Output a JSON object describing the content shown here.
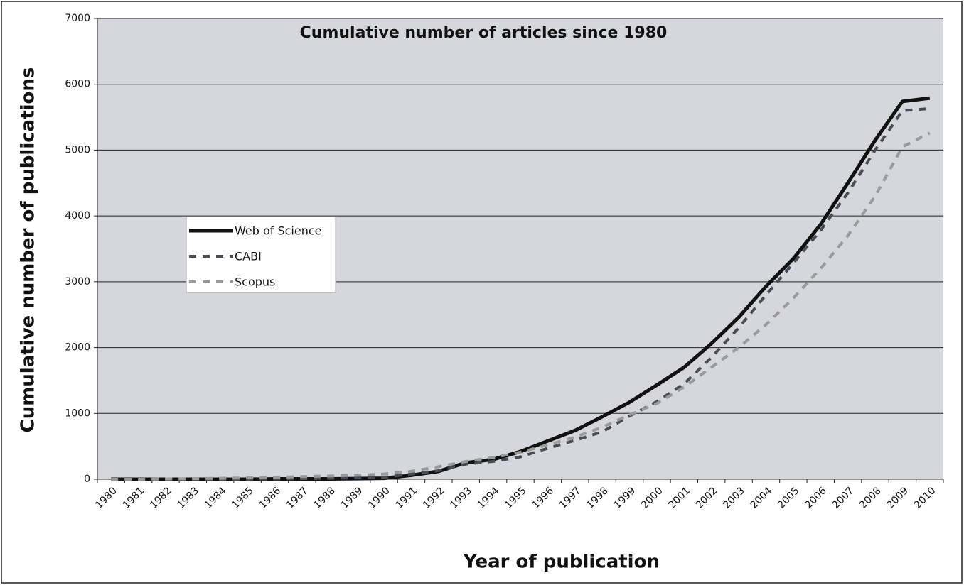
{
  "chart_data": {
    "type": "line",
    "title": "Cumulative number of articles since 1980",
    "x_label": "Year of publication",
    "y_label": "Cumulative number of publications",
    "categories": [
      "1980",
      "1981",
      "1982",
      "1983",
      "1984",
      "1985",
      "1986",
      "1987",
      "1988",
      "1989",
      "1990",
      "1991",
      "1992",
      "1993",
      "1994",
      "1995",
      "1996",
      "1997",
      "1998",
      "1999",
      "2000",
      "2001",
      "2002",
      "2003",
      "2004",
      "2005",
      "2006",
      "2007",
      "2008",
      "2009",
      "2010"
    ],
    "series": [
      {
        "name": "Web of Science",
        "color": "#111111",
        "style": "solid",
        "values": [
          0,
          0,
          0,
          0,
          0,
          0,
          5,
          5,
          5,
          10,
          15,
          60,
          120,
          250,
          300,
          420,
          580,
          740,
          950,
          1170,
          1430,
          1700,
          2060,
          2460,
          2930,
          3350,
          3870,
          4500,
          5150,
          5740,
          5790
        ]
      },
      {
        "name": "CABI",
        "color": "#474e57",
        "style": "dashed",
        "values": [
          0,
          0,
          0,
          0,
          0,
          0,
          5,
          10,
          15,
          20,
          30,
          80,
          130,
          230,
          270,
          340,
          470,
          590,
          720,
          960,
          1180,
          1450,
          1850,
          2300,
          2800,
          3280,
          3780,
          4350,
          5000,
          5600,
          5630
        ]
      },
      {
        "name": "Scopus",
        "color": "#9a9a9a",
        "style": "dashed",
        "values": [
          0,
          0,
          5,
          10,
          15,
          20,
          30,
          40,
          50,
          60,
          80,
          120,
          190,
          270,
          330,
          410,
          520,
          640,
          790,
          980,
          1150,
          1400,
          1700,
          2000,
          2350,
          2750,
          3200,
          3700,
          4300,
          5050,
          5260
        ]
      }
    ],
    "ylim": [
      0,
      7000
    ],
    "yticks": [
      0,
      1000,
      2000,
      3000,
      4000,
      5000,
      6000,
      7000
    ],
    "grid": true
  }
}
